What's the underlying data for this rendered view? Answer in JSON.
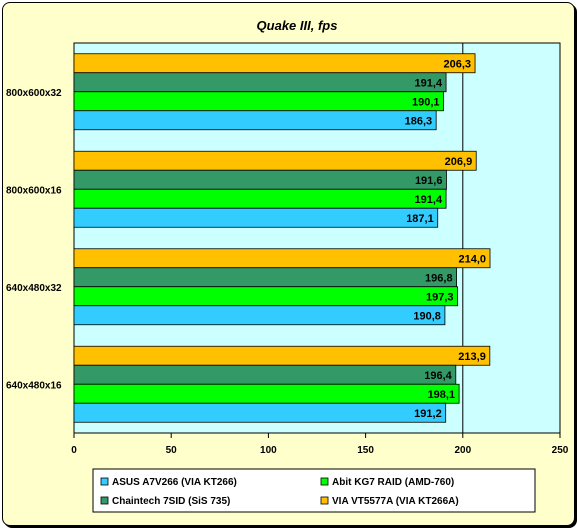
{
  "chart_data": {
    "type": "bar",
    "orientation": "horizontal",
    "title": "Quake III, fps",
    "xlabel": "",
    "ylabel": "",
    "xlim": [
      0,
      250
    ],
    "xticks": [
      0,
      50,
      100,
      150,
      200,
      250
    ],
    "categories": [
      "800x600x32",
      "800x600x16",
      "640x480x32",
      "640x480x16"
    ],
    "series": [
      {
        "name": "VIA VT5577A (VIA KT266A)",
        "color": "#ffc000",
        "values": [
          206.3,
          206.9,
          214.0,
          213.9
        ],
        "labels": [
          "206,3",
          "206,9",
          "214,0",
          "213,9"
        ]
      },
      {
        "name": "Chaintech 7SID (SiS 735)",
        "color": "#339966",
        "values": [
          191.4,
          191.6,
          196.8,
          196.4
        ],
        "labels": [
          "191,4",
          "191,6",
          "196,8",
          "196,4"
        ]
      },
      {
        "name": "Abit KG7 RAID (AMD-760)",
        "color": "#00ff00",
        "values": [
          190.1,
          191.4,
          197.3,
          198.1
        ],
        "labels": [
          "190,1",
          "191,4",
          "197,3",
          "198,1"
        ]
      },
      {
        "name": "ASUS A7V266 (VIA KT266)",
        "color": "#33ccff",
        "values": [
          186.3,
          187.1,
          190.8,
          191.2
        ],
        "labels": [
          "186,3",
          "187,1",
          "190,8",
          "191,2"
        ]
      }
    ],
    "legend_order": [
      "ASUS A7V266 (VIA KT266)",
      "Abit KG7 RAID (AMD-760)",
      "Chaintech 7SID (SiS 735)",
      "VIA VT5577A (VIA KT266A)"
    ],
    "legend_placement": "bottom",
    "grid": "vertical line at 200",
    "plot_background": "#ccffff",
    "chart_background": "#ffffcc"
  }
}
